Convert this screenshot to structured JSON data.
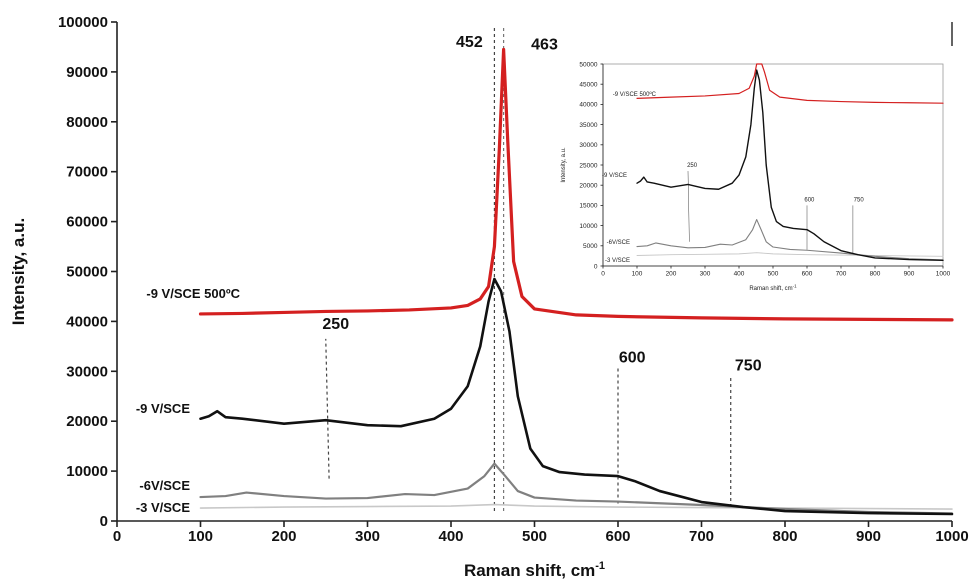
{
  "chart_data": [
    {
      "type": "line",
      "title": "",
      "xlabel": "Raman shift, cm",
      "xlabel_sup": "-1",
      "ylabel": "Intensity, a.u.",
      "xlim": [
        0,
        1000
      ],
      "ylim": [
        0,
        100000
      ],
      "x_ticks": [
        0,
        100,
        200,
        300,
        400,
        500,
        600,
        700,
        800,
        900,
        1000
      ],
      "y_ticks": [
        0,
        10000,
        20000,
        30000,
        40000,
        50000,
        60000,
        70000,
        80000,
        90000,
        100000
      ],
      "grid": false,
      "series": [
        {
          "name": "-9 V/SCE 500ºC",
          "color": "#d42020",
          "x": [
            100,
            150,
            200,
            250,
            300,
            350,
            400,
            420,
            435,
            445,
            452,
            458,
            463,
            468,
            475,
            485,
            500,
            550,
            600,
            700,
            800,
            900,
            1000
          ],
          "y": [
            41500,
            41600,
            41800,
            42000,
            42100,
            42300,
            42700,
            43200,
            44500,
            47000,
            55000,
            75000,
            94500,
            76000,
            52000,
            45000,
            42500,
            41300,
            41000,
            40700,
            40500,
            40400,
            40300
          ]
        },
        {
          "name": "-9 V/SCE",
          "color": "#111111",
          "x": [
            100,
            110,
            120,
            130,
            150,
            200,
            250,
            270,
            300,
            340,
            380,
            400,
            420,
            435,
            445,
            452,
            460,
            470,
            480,
            495,
            510,
            530,
            560,
            600,
            620,
            650,
            700,
            750,
            800,
            900,
            1000
          ],
          "y": [
            20500,
            21000,
            22000,
            20800,
            20500,
            19500,
            20200,
            19800,
            19200,
            19000,
            20500,
            22500,
            27000,
            35000,
            44000,
            48500,
            46000,
            38000,
            25000,
            14500,
            11000,
            9800,
            9300,
            9000,
            8000,
            6000,
            3800,
            2800,
            2000,
            1600,
            1400
          ]
        },
        {
          "name": "-6V/SCE",
          "color": "#808080",
          "x": [
            100,
            130,
            155,
            200,
            250,
            300,
            345,
            380,
            420,
            440,
            452,
            465,
            480,
            500,
            550,
            600,
            700,
            800,
            900,
            1000
          ],
          "y": [
            4800,
            5000,
            5700,
            5000,
            4500,
            4600,
            5400,
            5200,
            6500,
            9000,
            11500,
            9000,
            6000,
            4700,
            4100,
            3900,
            3200,
            2400,
            1800,
            1500
          ]
        },
        {
          "name": "-3 V/SCE",
          "color": "#c8c8c8",
          "x": [
            100,
            200,
            300,
            400,
            452,
            500,
            600,
            700,
            800,
            900,
            1000
          ],
          "y": [
            2600,
            2800,
            2900,
            3000,
            3300,
            3000,
            2800,
            2700,
            2600,
            2500,
            2400
          ]
        }
      ],
      "annotations": [
        {
          "label": "452",
          "x": 452,
          "color": "#111111"
        },
        {
          "label": "463",
          "x": 463,
          "color": "#d42020"
        },
        {
          "label": "250",
          "x": 250,
          "color": "#111111"
        },
        {
          "label": "600",
          "x": 600,
          "color": "#111111"
        },
        {
          "label": "750",
          "x": 735,
          "color": "#111111"
        }
      ]
    },
    {
      "type": "line",
      "title": "",
      "xlabel": "Raman shift, cm",
      "xlabel_sup": "-1",
      "ylabel": "Intensity, a.u.",
      "xlim": [
        0,
        1000
      ],
      "ylim": [
        0,
        50000
      ],
      "x_ticks": [
        0,
        100,
        200,
        300,
        400,
        500,
        600,
        700,
        800,
        900,
        1000
      ],
      "y_ticks": [
        0,
        5000,
        10000,
        15000,
        20000,
        25000,
        30000,
        35000,
        40000,
        45000,
        50000
      ],
      "grid": false,
      "series": [
        {
          "name": "-9 V/SCE 500ºC",
          "color": "#d42020",
          "x": [
            100,
            200,
            300,
            400,
            430,
            445,
            452,
            460,
            463,
            467,
            475,
            490,
            520,
            600,
            700,
            800,
            900,
            1000
          ],
          "y": [
            41500,
            41800,
            42100,
            42700,
            44000,
            47000,
            50000,
            50000,
            50000,
            50000,
            48000,
            43500,
            41800,
            41000,
            40700,
            40500,
            40400,
            40300
          ]
        },
        {
          "name": "-9 V/SCE",
          "color": "#111111",
          "x": [
            100,
            110,
            120,
            130,
            150,
            200,
            250,
            270,
            300,
            340,
            380,
            400,
            420,
            435,
            445,
            452,
            460,
            470,
            480,
            495,
            510,
            530,
            560,
            600,
            620,
            650,
            700,
            750,
            800,
            900,
            1000
          ],
          "y": [
            20500,
            21000,
            22000,
            20800,
            20500,
            19500,
            20200,
            19800,
            19200,
            19000,
            20500,
            22500,
            27000,
            35000,
            44000,
            48500,
            46000,
            38000,
            25000,
            14500,
            11000,
            9800,
            9300,
            9000,
            8000,
            6000,
            3800,
            2800,
            2000,
            1600,
            1400
          ]
        },
        {
          "name": "-6V/SCE",
          "color": "#808080",
          "x": [
            100,
            130,
            155,
            200,
            250,
            300,
            345,
            380,
            420,
            440,
            452,
            465,
            480,
            500,
            550,
            600,
            700,
            800,
            900,
            1000
          ],
          "y": [
            4800,
            5000,
            5700,
            5000,
            4500,
            4600,
            5400,
            5200,
            6500,
            9000,
            11500,
            9000,
            6000,
            4700,
            4100,
            3900,
            3200,
            2400,
            1800,
            1500
          ]
        },
        {
          "name": "-3 V/SCE",
          "color": "#c8c8c8",
          "x": [
            100,
            200,
            300,
            400,
            452,
            500,
            600,
            700,
            800,
            900,
            1000
          ],
          "y": [
            2600,
            2800,
            2900,
            3000,
            3300,
            3000,
            2800,
            2700,
            2600,
            2500,
            2400
          ]
        }
      ],
      "annotations": [
        {
          "label": "250",
          "x": 250,
          "color": "#111111"
        },
        {
          "label": "600",
          "x": 600,
          "color": "#111111"
        },
        {
          "label": "750",
          "x": 735,
          "color": "#111111"
        }
      ]
    }
  ]
}
